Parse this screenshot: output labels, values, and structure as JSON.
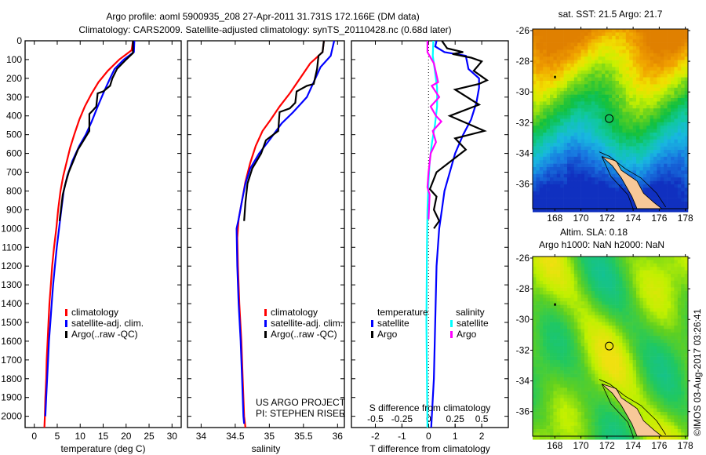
{
  "header": {
    "title_line1": "Argo profile: aoml 5900935_208 27-Apr-2011 31.731S 172.166E (DM data)",
    "title_line2": "Climatology: CARS2009. Satellite-adjusted climatology: synTS_20110428.nc (0.68d later)"
  },
  "colors": {
    "climatology": "#ff0000",
    "satellite": "#0000ff",
    "argo": "#000000",
    "s_satellite": "#00ffff",
    "s_argo": "#ff00ff"
  },
  "chart_data": [
    {
      "type": "line",
      "name": "temperature-profile",
      "xlabel": "temperature (deg C)",
      "ylabel": "",
      "xlim": [
        -2,
        32
      ],
      "ylim": [
        2060,
        0
      ],
      "xticks": [
        0,
        5,
        10,
        15,
        20,
        25,
        30
      ],
      "yticks": [
        0,
        100,
        200,
        300,
        400,
        500,
        600,
        700,
        800,
        900,
        1000,
        1100,
        1200,
        1300,
        1400,
        1500,
        1600,
        1700,
        1800,
        1900,
        2000
      ],
      "legend": [
        "climatology",
        "satellite-adj. clim.",
        "Argo(..raw -QC)"
      ],
      "series": [
        {
          "name": "climatology",
          "color_key": "climatology",
          "points": [
            [
              21.5,
              0
            ],
            [
              21.2,
              50
            ],
            [
              18.5,
              100
            ],
            [
              16,
              160
            ],
            [
              14,
              220
            ],
            [
              12.5,
              280
            ],
            [
              11,
              350
            ],
            [
              9.8,
              420
            ],
            [
              8.7,
              500
            ],
            [
              7.8,
              570
            ],
            [
              7.0,
              650
            ],
            [
              6.3,
              720
            ],
            [
              5.7,
              800
            ],
            [
              5.2,
              900
            ],
            [
              4.8,
              1000
            ],
            [
              4.3,
              1100
            ],
            [
              3.9,
              1200
            ],
            [
              3.6,
              1300
            ],
            [
              3.3,
              1400
            ],
            [
              3.1,
              1500
            ],
            [
              2.9,
              1600
            ],
            [
              2.7,
              1700
            ],
            [
              2.6,
              1800
            ],
            [
              2.4,
              1900
            ],
            [
              2.3,
              2000
            ],
            [
              2.2,
              2060
            ]
          ]
        },
        {
          "name": "satellite-adj. clim.",
          "color_key": "satellite",
          "points": [
            [
              21.8,
              0
            ],
            [
              21.7,
              60
            ],
            [
              19.5,
              100
            ],
            [
              17.5,
              150
            ],
            [
              16.5,
              200
            ],
            [
              15.2,
              270
            ],
            [
              13.8,
              350
            ],
            [
              12.5,
              430
            ],
            [
              11.2,
              500
            ],
            [
              9.8,
              560
            ],
            [
              8.3,
              640
            ],
            [
              7.2,
              720
            ],
            [
              6.4,
              800
            ],
            [
              5.9,
              900
            ],
            [
              5.4,
              1000
            ],
            [
              4.9,
              1100
            ],
            [
              4.5,
              1200
            ],
            [
              4.1,
              1300
            ],
            [
              3.8,
              1400
            ],
            [
              3.5,
              1500
            ],
            [
              3.2,
              1600
            ],
            [
              3.0,
              1700
            ],
            [
              2.8,
              1800
            ],
            [
              2.6,
              1900
            ],
            [
              2.4,
              2000
            ]
          ]
        },
        {
          "name": "Argo(..raw -QC)",
          "color_key": "argo",
          "points": [
            [
              21.5,
              0
            ],
            [
              21.5,
              65
            ],
            [
              20,
              100
            ],
            [
              18,
              150
            ],
            [
              17,
              200
            ],
            [
              16.5,
              240
            ],
            [
              15,
              270
            ],
            [
              13.8,
              280
            ],
            [
              13.5,
              350
            ],
            [
              12.8,
              370
            ],
            [
              12,
              390
            ],
            [
              12,
              480
            ],
            [
              11.5,
              500
            ],
            [
              10.5,
              540
            ],
            [
              9.5,
              580
            ],
            [
              8.5,
              640
            ],
            [
              7.5,
              700
            ],
            [
              6.8,
              760
            ],
            [
              6.2,
              820
            ],
            [
              5.8,
              900
            ],
            [
              5.5,
              960
            ]
          ]
        }
      ]
    },
    {
      "type": "line",
      "name": "salinity-profile",
      "xlabel": "salinity",
      "xlim": [
        33.8,
        36.1
      ],
      "ylim": [
        2060,
        0
      ],
      "xticks": [
        34,
        34.5,
        35,
        35.5,
        36
      ],
      "xticklabels": [
        "34",
        "34.5",
        "35",
        "35.5",
        "36"
      ],
      "legend": [
        "climatology",
        "satellite-adj. clim.",
        "Argo(..raw -QC)"
      ],
      "annotations": [
        "US ARGO PROJECT",
        "PI: STEPHEN RISER"
      ],
      "series": [
        {
          "name": "climatology",
          "color_key": "climatology",
          "points": [
            [
              35.8,
              0
            ],
            [
              35.78,
              60
            ],
            [
              35.6,
              120
            ],
            [
              35.45,
              200
            ],
            [
              35.3,
              280
            ],
            [
              35.15,
              350
            ],
            [
              35.02,
              420
            ],
            [
              34.9,
              480
            ],
            [
              34.8,
              560
            ],
            [
              34.72,
              650
            ],
            [
              34.65,
              750
            ],
            [
              34.6,
              850
            ],
            [
              34.55,
              950
            ],
            [
              34.53,
              1050
            ],
            [
              34.54,
              1200
            ],
            [
              34.56,
              1400
            ],
            [
              34.59,
              1600
            ],
            [
              34.61,
              1800
            ],
            [
              34.63,
              2000
            ],
            [
              34.65,
              2060
            ]
          ]
        },
        {
          "name": "satellite-adj. clim.",
          "color_key": "satellite",
          "points": [
            [
              35.95,
              0
            ],
            [
              35.9,
              80
            ],
            [
              35.75,
              140
            ],
            [
              35.65,
              220
            ],
            [
              35.55,
              300
            ],
            [
              35.35,
              380
            ],
            [
              35.18,
              440
            ],
            [
              35.02,
              520
            ],
            [
              34.85,
              600
            ],
            [
              34.72,
              680
            ],
            [
              34.65,
              760
            ],
            [
              34.6,
              850
            ],
            [
              34.55,
              950
            ],
            [
              34.52,
              1000
            ],
            [
              34.53,
              1200
            ],
            [
              34.55,
              1400
            ],
            [
              34.58,
              1600
            ],
            [
              34.6,
              1800
            ],
            [
              34.62,
              2000
            ],
            [
              34.63,
              2040
            ]
          ]
        },
        {
          "name": "Argo(..raw -QC)",
          "color_key": "argo",
          "points": [
            [
              35.8,
              0
            ],
            [
              35.78,
              60
            ],
            [
              35.72,
              80
            ],
            [
              35.7,
              150
            ],
            [
              35.65,
              230
            ],
            [
              35.55,
              240
            ],
            [
              35.4,
              270
            ],
            [
              35.38,
              330
            ],
            [
              35.3,
              360
            ],
            [
              35.15,
              380
            ],
            [
              35.13,
              480
            ],
            [
              34.95,
              530
            ],
            [
              34.88,
              600
            ],
            [
              34.75,
              680
            ],
            [
              34.68,
              760
            ],
            [
              34.65,
              860
            ],
            [
              34.63,
              960
            ]
          ]
        }
      ]
    },
    {
      "type": "line",
      "name": "difference-profile",
      "xlabel": "T difference from climatology",
      "xlabel2": "S difference from climatology",
      "xlim": [
        -2.9,
        3.0
      ],
      "ylim": [
        2060,
        0
      ],
      "xticks": [
        -2,
        -1,
        0,
        1,
        2
      ],
      "x2ticks": [
        -0.5,
        -0.25,
        0,
        0.25,
        0.5
      ],
      "x2ticklabels": [
        "-0.5",
        "-0.25",
        "0",
        "0.25",
        "0.5"
      ],
      "legend": {
        "temperature_title": "temperature",
        "salinity_title": "salinity",
        "items": [
          "satellite",
          "Argo",
          "satellite",
          "Argo"
        ]
      },
      "series": [
        {
          "name": "T satellite",
          "color_key": "satellite",
          "points": [
            [
              0.3,
              0
            ],
            [
              0.25,
              30
            ],
            [
              0.6,
              60
            ],
            [
              1.4,
              80
            ],
            [
              1.5,
              150
            ],
            [
              1.9,
              200
            ],
            [
              1.9,
              250
            ],
            [
              1.8,
              330
            ],
            [
              1.6,
              420
            ],
            [
              1.3,
              500
            ],
            [
              1.0,
              600
            ],
            [
              0.8,
              700
            ],
            [
              0.6,
              800
            ],
            [
              0.5,
              900
            ],
            [
              0.4,
              1000
            ],
            [
              0.3,
              1200
            ],
            [
              0.25,
              1500
            ],
            [
              0.2,
              1800
            ],
            [
              0.1,
              2060
            ]
          ]
        },
        {
          "name": "T Argo",
          "color_key": "argo",
          "points": [
            [
              0.5,
              0
            ],
            [
              0.7,
              40
            ],
            [
              1.3,
              60
            ],
            [
              0.9,
              70
            ],
            [
              1.6,
              90
            ],
            [
              2.0,
              110
            ],
            [
              1.7,
              160
            ],
            [
              2.2,
              210
            ],
            [
              1.9,
              230
            ],
            [
              1.0,
              260
            ],
            [
              1.9,
              340
            ],
            [
              0.8,
              400
            ],
            [
              2.1,
              480
            ],
            [
              1.0,
              520
            ],
            [
              1.4,
              580
            ],
            [
              0.3,
              700
            ],
            [
              0.05,
              790
            ],
            [
              0.3,
              830
            ],
            [
              0.2,
              900
            ],
            [
              0.4,
              960
            ],
            [
              0.2,
              1000
            ]
          ]
        },
        {
          "name": "S satellite",
          "color_key": "s_satellite",
          "points": [
            [
              0.045,
              0
            ],
            [
              0.04,
              80
            ],
            [
              0.06,
              160
            ],
            [
              0.08,
              250
            ],
            [
              0.08,
              350
            ],
            [
              0.06,
              450
            ],
            [
              0.03,
              550
            ],
            [
              0.01,
              650
            ],
            [
              0.0,
              750
            ],
            [
              -0.01,
              900
            ],
            [
              -0.015,
              1100
            ],
            [
              -0.02,
              1500
            ],
            [
              -0.015,
              1800
            ],
            [
              -0.01,
              2060
            ]
          ]
        },
        {
          "name": "S Argo",
          "color_key": "s_argo",
          "points": [
            [
              -0.01,
              0
            ],
            [
              -0.01,
              60
            ],
            [
              0.05,
              120
            ],
            [
              0.09,
              220
            ],
            [
              0.03,
              240
            ],
            [
              0.1,
              300
            ],
            [
              0.02,
              350
            ],
            [
              0.07,
              400
            ],
            [
              0.12,
              430
            ],
            [
              0.04,
              480
            ],
            [
              0.07,
              540
            ],
            [
              0.02,
              600
            ],
            [
              0.0,
              700
            ],
            [
              -0.01,
              780
            ],
            [
              0.01,
              820
            ],
            [
              0.0,
              950
            ]
          ]
        }
      ]
    },
    {
      "type": "heatmap",
      "name": "sst-map",
      "title": "sat. SST: 21.5 Argo: 21.7",
      "xlim": [
        166.3,
        178.2
      ],
      "ylim": [
        -37.6,
        -25.9
      ],
      "xticks": [
        168,
        170,
        172,
        174,
        176,
        178
      ],
      "yticks": [
        -26,
        -28,
        -30,
        -32,
        -34,
        -36
      ],
      "float_position": [
        172.166,
        -31.731
      ]
    },
    {
      "type": "heatmap",
      "name": "sla-map",
      "title": "Altim. SLA: 0.18",
      "subtitle": "Argo h1000: NaN h2000: NaN",
      "xlim": [
        166.3,
        178.2
      ],
      "ylim": [
        -37.6,
        -25.9
      ],
      "xticks": [
        168,
        170,
        172,
        174,
        176,
        178
      ],
      "yticks": [
        -26,
        -28,
        -30,
        -32,
        -34,
        -36
      ],
      "float_position": [
        172.166,
        -31.731
      ]
    }
  ],
  "legend_labels": {
    "climatology": "climatology",
    "satellite_adj": "satellite-adj. clim.",
    "argo": "Argo(..raw -QC)",
    "temperature": "temperature",
    "salinity": "salinity",
    "satellite": "satellite",
    "argo_short": "Argo"
  },
  "footer": {
    "copyright": "©IMOS 03-Aug-2017 03:26:41"
  }
}
